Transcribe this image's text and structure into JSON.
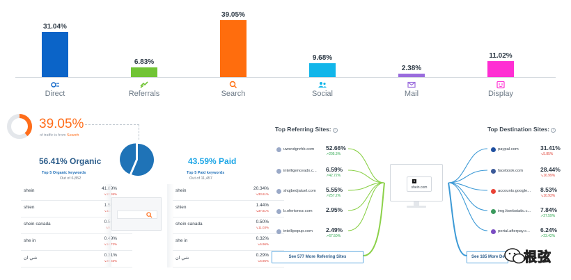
{
  "channels": [
    {
      "name": "Direct",
      "value": "31.04%",
      "pct": 31.04,
      "color": "#0b64c8",
      "icon": "direct-icon"
    },
    {
      "name": "Referrals",
      "value": "6.83%",
      "pct": 6.83,
      "color": "#71c435",
      "icon": "referrals-icon"
    },
    {
      "name": "Search",
      "value": "39.05%",
      "pct": 39.05,
      "color": "#ff6d0d",
      "icon": "search-icon"
    },
    {
      "name": "Social",
      "value": "9.68%",
      "pct": 9.68,
      "color": "#12b6ea",
      "icon": "social-icon"
    },
    {
      "name": "Mail",
      "value": "2.38%",
      "pct": 2.38,
      "color": "#9a6cdd",
      "icon": "mail-icon"
    },
    {
      "name": "Display",
      "value": "11.02%",
      "pct": 11.02,
      "color": "#ff2ed3",
      "icon": "display-icon"
    }
  ],
  "search": {
    "percent": "39.05%",
    "percent_value": 39.05,
    "subtitle_prefix": "of traffic is from",
    "subtitle_highlight": "Search",
    "color": "#ff6d1a"
  },
  "organic": {
    "heading": "56.41% Organic",
    "share": 56.41,
    "kw_title": "Top 5 Organic keywords",
    "kw_sub": "Out of 6,852",
    "keywords": [
      {
        "name": "shein",
        "pct": "41.89%",
        "chg": "12.95%"
      },
      {
        "name": "shien",
        "pct": "1.59%",
        "chg": "11.60%"
      },
      {
        "name": "shein canada",
        "pct": "0.54%",
        "chg": "9.03%"
      },
      {
        "name": "she in",
        "pct": "0.49%",
        "chg": "14.72%"
      },
      {
        "name": "شي ان",
        "pct": "0.31%",
        "chg": "20.83%"
      }
    ]
  },
  "paid": {
    "heading": "43.59% Paid",
    "share": 43.59,
    "kw_title": "Top 5 Paid keywords",
    "kw_sub": "Out of 11,457",
    "keywords": [
      {
        "name": "shein",
        "pct": "20.34%",
        "chg": "33.61%"
      },
      {
        "name": "shien",
        "pct": "1.44%",
        "chg": "37.81%"
      },
      {
        "name": "shein canada",
        "pct": "0.50%",
        "chg": "11.03%"
      },
      {
        "name": "she in",
        "pct": "0.32%",
        "chg": "6.96%"
      },
      {
        "name": "شي ان",
        "pct": "0.29%",
        "chg": "6.96%"
      }
    ]
  },
  "referring": {
    "title": "Top Referring Sites:",
    "sites": [
      {
        "name": "uwsndgnrhb.com",
        "pct": "52.66%",
        "chg": "205.3%",
        "dir": "up"
      },
      {
        "name": "intelligenceadx.c...",
        "pct": "6.59%",
        "chg": "42.72%",
        "dir": "up"
      },
      {
        "name": "shqjbedjatuel.com",
        "pct": "5.55%",
        "chg": "257.2%",
        "dir": "up"
      },
      {
        "name": "b.ofertonez.com",
        "pct": "2.95%",
        "chg": "",
        "dir": "up"
      },
      {
        "name": "intellipopup.com",
        "pct": "2.49%",
        "chg": "67.50%",
        "dir": "up"
      }
    ],
    "see_more": "See 577 More Referring Sites",
    "color": "#8cd14a"
  },
  "destination": {
    "title": "Top Destination Sites:",
    "sites": [
      {
        "name": "paypal.com",
        "pct": "31.41%",
        "chg": "5.85%",
        "dir": "down",
        "icon_color": "#1f4fa0"
      },
      {
        "name": "facebook.com",
        "pct": "28.44%",
        "chg": "16.99%",
        "dir": "down",
        "icon_color": "#3b5998"
      },
      {
        "name": "accounts.google...",
        "pct": "8.53%",
        "chg": "10.93%",
        "dir": "down",
        "icon_color": "#e94235"
      },
      {
        "name": "img.ltwebstatic.c...",
        "pct": "7.84%",
        "chg": "27.59%",
        "dir": "up",
        "icon_color": "#3b9a5d"
      },
      {
        "name": "portal.afterpay.c...",
        "pct": "6.24%",
        "chg": "23.42%",
        "dir": "up",
        "icon_color": "#7a4cc2"
      }
    ],
    "see_more": "See 185 More Destination Sites",
    "color": "#3d9ad6"
  },
  "center_site": {
    "favicon": "S",
    "name": "shein.com"
  },
  "watermark": {
    "text": "根弦",
    "icon": "wechat-icon"
  }
}
